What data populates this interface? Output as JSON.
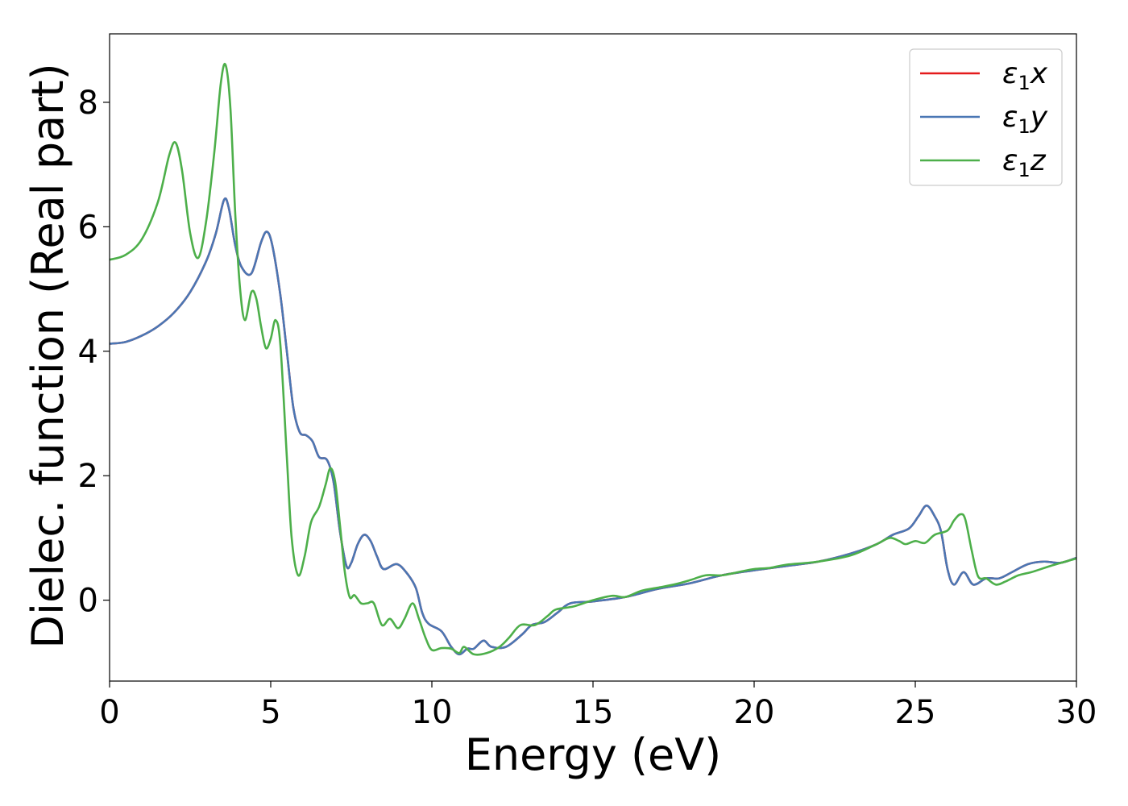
{
  "chart_data": {
    "type": "line",
    "title": "",
    "xlabel": "Energy (eV)",
    "ylabel": "Dielec. function (Real part)",
    "xlim": [
      0,
      30
    ],
    "ylim": [
      -1.3,
      9.1
    ],
    "xticks": [
      0,
      5,
      10,
      15,
      20,
      25,
      30
    ],
    "yticks": [
      0,
      2,
      4,
      6,
      8
    ],
    "grid": false,
    "legend_position": "top-right",
    "series": [
      {
        "name": "ε₁x",
        "legend_main": "ε",
        "legend_sub": "1",
        "legend_var": "x",
        "color": "#e41a1c",
        "points": [
          [
            0,
            4.12
          ],
          [
            0.5,
            4.15
          ],
          [
            1,
            4.25
          ],
          [
            1.5,
            4.4
          ],
          [
            2,
            4.62
          ],
          [
            2.5,
            4.95
          ],
          [
            3,
            5.45
          ],
          [
            3.3,
            5.9
          ],
          [
            3.55,
            6.43
          ],
          [
            3.7,
            6.3
          ],
          [
            3.9,
            5.7
          ],
          [
            4.1,
            5.35
          ],
          [
            4.4,
            5.25
          ],
          [
            4.7,
            5.75
          ],
          [
            4.88,
            5.92
          ],
          [
            5.05,
            5.7
          ],
          [
            5.3,
            4.9
          ],
          [
            5.5,
            4.0
          ],
          [
            5.7,
            3.1
          ],
          [
            5.9,
            2.7
          ],
          [
            6.1,
            2.65
          ],
          [
            6.3,
            2.55
          ],
          [
            6.5,
            2.3
          ],
          [
            6.75,
            2.25
          ],
          [
            6.95,
            1.9
          ],
          [
            7.15,
            1.1
          ],
          [
            7.35,
            0.55
          ],
          [
            7.5,
            0.6
          ],
          [
            7.7,
            0.9
          ],
          [
            7.9,
            1.05
          ],
          [
            8.1,
            0.95
          ],
          [
            8.3,
            0.7
          ],
          [
            8.5,
            0.5
          ],
          [
            8.9,
            0.58
          ],
          [
            9.2,
            0.45
          ],
          [
            9.5,
            0.2
          ],
          [
            9.7,
            -0.2
          ],
          [
            9.9,
            -0.38
          ],
          [
            10.3,
            -0.5
          ],
          [
            10.6,
            -0.75
          ],
          [
            10.85,
            -0.87
          ],
          [
            11.1,
            -0.78
          ],
          [
            11.3,
            -0.78
          ],
          [
            11.6,
            -0.65
          ],
          [
            11.85,
            -0.75
          ],
          [
            12.3,
            -0.75
          ],
          [
            12.8,
            -0.55
          ],
          [
            13.1,
            -0.4
          ],
          [
            13.5,
            -0.35
          ],
          [
            13.9,
            -0.2
          ],
          [
            14.3,
            -0.05
          ],
          [
            15,
            -0.02
          ],
          [
            16,
            0.05
          ],
          [
            17,
            0.18
          ],
          [
            18,
            0.27
          ],
          [
            19,
            0.4
          ],
          [
            20,
            0.48
          ],
          [
            21,
            0.55
          ],
          [
            22,
            0.62
          ],
          [
            23,
            0.75
          ],
          [
            23.8,
            0.9
          ],
          [
            24.3,
            1.05
          ],
          [
            24.8,
            1.15
          ],
          [
            25.1,
            1.35
          ],
          [
            25.35,
            1.52
          ],
          [
            25.6,
            1.35
          ],
          [
            25.8,
            1.1
          ],
          [
            26,
            0.5
          ],
          [
            26.2,
            0.25
          ],
          [
            26.5,
            0.45
          ],
          [
            26.8,
            0.25
          ],
          [
            27.2,
            0.35
          ],
          [
            27.6,
            0.35
          ],
          [
            28,
            0.45
          ],
          [
            28.5,
            0.58
          ],
          [
            29,
            0.62
          ],
          [
            29.5,
            0.6
          ],
          [
            30,
            0.68
          ]
        ]
      },
      {
        "name": "ε₁y",
        "legend_main": "ε",
        "legend_sub": "1",
        "legend_var": "y",
        "color": "#4a77b4",
        "points": [
          [
            0,
            4.12
          ],
          [
            0.5,
            4.15
          ],
          [
            1,
            4.25
          ],
          [
            1.5,
            4.4
          ],
          [
            2,
            4.62
          ],
          [
            2.5,
            4.95
          ],
          [
            3,
            5.45
          ],
          [
            3.3,
            5.9
          ],
          [
            3.55,
            6.43
          ],
          [
            3.7,
            6.3
          ],
          [
            3.9,
            5.7
          ],
          [
            4.1,
            5.35
          ],
          [
            4.4,
            5.25
          ],
          [
            4.7,
            5.75
          ],
          [
            4.88,
            5.92
          ],
          [
            5.05,
            5.7
          ],
          [
            5.3,
            4.9
          ],
          [
            5.5,
            4.0
          ],
          [
            5.7,
            3.1
          ],
          [
            5.9,
            2.7
          ],
          [
            6.1,
            2.65
          ],
          [
            6.3,
            2.55
          ],
          [
            6.5,
            2.3
          ],
          [
            6.75,
            2.25
          ],
          [
            6.95,
            1.9
          ],
          [
            7.15,
            1.1
          ],
          [
            7.35,
            0.55
          ],
          [
            7.5,
            0.6
          ],
          [
            7.7,
            0.9
          ],
          [
            7.9,
            1.05
          ],
          [
            8.1,
            0.95
          ],
          [
            8.3,
            0.7
          ],
          [
            8.5,
            0.5
          ],
          [
            8.9,
            0.58
          ],
          [
            9.2,
            0.45
          ],
          [
            9.5,
            0.2
          ],
          [
            9.7,
            -0.2
          ],
          [
            9.9,
            -0.38
          ],
          [
            10.3,
            -0.5
          ],
          [
            10.6,
            -0.75
          ],
          [
            10.85,
            -0.87
          ],
          [
            11.1,
            -0.78
          ],
          [
            11.3,
            -0.78
          ],
          [
            11.6,
            -0.65
          ],
          [
            11.85,
            -0.75
          ],
          [
            12.3,
            -0.75
          ],
          [
            12.8,
            -0.55
          ],
          [
            13.1,
            -0.4
          ],
          [
            13.5,
            -0.35
          ],
          [
            13.9,
            -0.2
          ],
          [
            14.3,
            -0.05
          ],
          [
            15,
            -0.02
          ],
          [
            16,
            0.05
          ],
          [
            17,
            0.18
          ],
          [
            18,
            0.27
          ],
          [
            19,
            0.4
          ],
          [
            20,
            0.48
          ],
          [
            21,
            0.55
          ],
          [
            22,
            0.62
          ],
          [
            23,
            0.75
          ],
          [
            23.8,
            0.9
          ],
          [
            24.3,
            1.05
          ],
          [
            24.8,
            1.15
          ],
          [
            25.1,
            1.35
          ],
          [
            25.35,
            1.52
          ],
          [
            25.6,
            1.35
          ],
          [
            25.8,
            1.1
          ],
          [
            26,
            0.5
          ],
          [
            26.2,
            0.25
          ],
          [
            26.5,
            0.45
          ],
          [
            26.8,
            0.25
          ],
          [
            27.2,
            0.35
          ],
          [
            27.6,
            0.35
          ],
          [
            28,
            0.45
          ],
          [
            28.5,
            0.58
          ],
          [
            29,
            0.62
          ],
          [
            29.5,
            0.6
          ],
          [
            30,
            0.68
          ]
        ]
      },
      {
        "name": "ε₁z",
        "legend_main": "ε",
        "legend_sub": "1",
        "legend_var": "z",
        "color": "#4daf4a",
        "points": [
          [
            0,
            5.47
          ],
          [
            0.5,
            5.55
          ],
          [
            1,
            5.8
          ],
          [
            1.5,
            6.4
          ],
          [
            1.85,
            7.15
          ],
          [
            2.05,
            7.35
          ],
          [
            2.25,
            6.9
          ],
          [
            2.5,
            5.9
          ],
          [
            2.75,
            5.5
          ],
          [
            3.0,
            6.1
          ],
          [
            3.25,
            7.2
          ],
          [
            3.45,
            8.3
          ],
          [
            3.6,
            8.6
          ],
          [
            3.75,
            7.9
          ],
          [
            3.9,
            6.2
          ],
          [
            4.05,
            5.0
          ],
          [
            4.2,
            4.5
          ],
          [
            4.4,
            4.95
          ],
          [
            4.55,
            4.85
          ],
          [
            4.7,
            4.4
          ],
          [
            4.85,
            4.05
          ],
          [
            5.0,
            4.2
          ],
          [
            5.15,
            4.5
          ],
          [
            5.3,
            4.1
          ],
          [
            5.5,
            2.3
          ],
          [
            5.65,
            1.0
          ],
          [
            5.85,
            0.4
          ],
          [
            6.05,
            0.7
          ],
          [
            6.25,
            1.25
          ],
          [
            6.5,
            1.5
          ],
          [
            6.7,
            1.85
          ],
          [
            6.85,
            2.12
          ],
          [
            7.0,
            1.9
          ],
          [
            7.15,
            1.2
          ],
          [
            7.3,
            0.45
          ],
          [
            7.45,
            0.05
          ],
          [
            7.6,
            0.08
          ],
          [
            7.8,
            -0.05
          ],
          [
            8.0,
            -0.05
          ],
          [
            8.2,
            -0.05
          ],
          [
            8.45,
            -0.4
          ],
          [
            8.7,
            -0.3
          ],
          [
            8.95,
            -0.45
          ],
          [
            9.15,
            -0.3
          ],
          [
            9.4,
            -0.05
          ],
          [
            9.6,
            -0.3
          ],
          [
            9.8,
            -0.6
          ],
          [
            10.0,
            -0.8
          ],
          [
            10.3,
            -0.77
          ],
          [
            10.6,
            -0.78
          ],
          [
            10.85,
            -0.85
          ],
          [
            11.0,
            -0.75
          ],
          [
            11.3,
            -0.87
          ],
          [
            11.7,
            -0.85
          ],
          [
            12.1,
            -0.75
          ],
          [
            12.4,
            -0.6
          ],
          [
            12.75,
            -0.4
          ],
          [
            13.2,
            -0.4
          ],
          [
            13.6,
            -0.25
          ],
          [
            13.85,
            -0.15
          ],
          [
            14.4,
            -0.1
          ],
          [
            15,
            0
          ],
          [
            15.6,
            0.07
          ],
          [
            16,
            0.05
          ],
          [
            16.5,
            0.15
          ],
          [
            17,
            0.2
          ],
          [
            17.5,
            0.25
          ],
          [
            18,
            0.32
          ],
          [
            18.5,
            0.4
          ],
          [
            19,
            0.4
          ],
          [
            19.5,
            0.45
          ],
          [
            20,
            0.5
          ],
          [
            20.5,
            0.52
          ],
          [
            21,
            0.57
          ],
          [
            22,
            0.62
          ],
          [
            23,
            0.72
          ],
          [
            23.8,
            0.9
          ],
          [
            24.2,
            1.0
          ],
          [
            24.5,
            0.95
          ],
          [
            24.7,
            0.9
          ],
          [
            25.0,
            0.95
          ],
          [
            25.3,
            0.92
          ],
          [
            25.6,
            1.05
          ],
          [
            26.0,
            1.12
          ],
          [
            26.2,
            1.28
          ],
          [
            26.4,
            1.38
          ],
          [
            26.55,
            1.3
          ],
          [
            26.75,
            0.8
          ],
          [
            26.95,
            0.38
          ],
          [
            27.2,
            0.35
          ],
          [
            27.5,
            0.25
          ],
          [
            27.8,
            0.3
          ],
          [
            28.2,
            0.4
          ],
          [
            28.6,
            0.45
          ],
          [
            29.2,
            0.55
          ],
          [
            30,
            0.67
          ]
        ]
      }
    ]
  }
}
